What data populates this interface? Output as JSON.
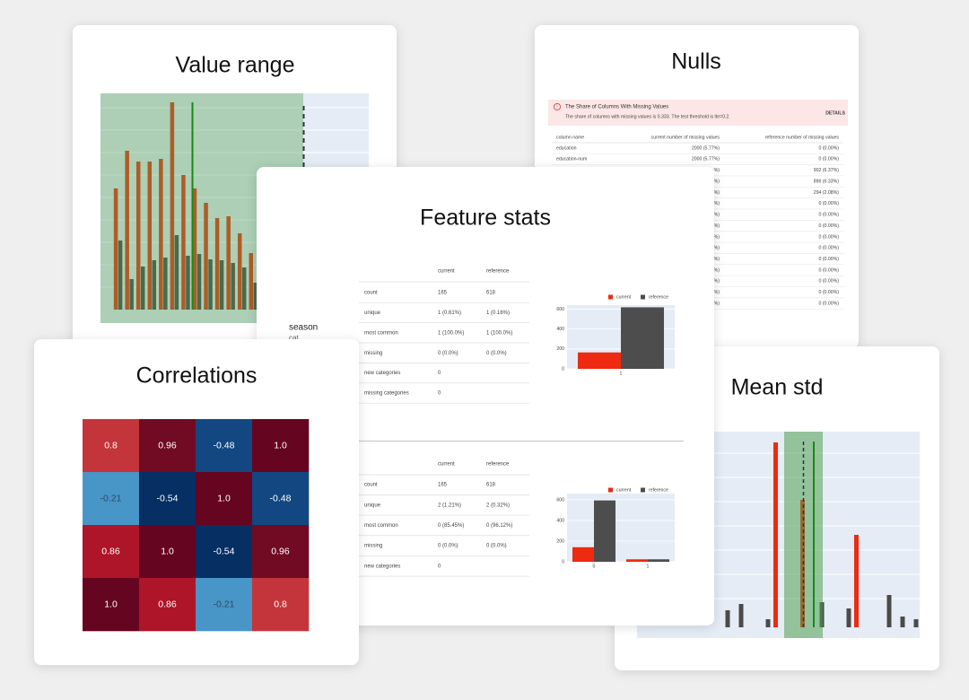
{
  "value_range": {
    "title": "Value range",
    "type": "bar",
    "ylim": [
      0,
      240
    ],
    "series": [
      {
        "color": "#e8330f",
        "values": [
          null,
          135,
          177,
          165,
          165,
          168,
          231,
          150,
          135,
          119,
          102,
          104,
          85,
          63,
          null,
          null,
          null,
          null
        ]
      },
      {
        "color": "#4a4a4a",
        "values": [
          null,
          77,
          34,
          48,
          55,
          58,
          83,
          60,
          62,
          56,
          55,
          52,
          47,
          30,
          null,
          null,
          null,
          null
        ]
      }
    ]
  },
  "nulls": {
    "title": "Nulls",
    "alert": {
      "icon": "!",
      "title": "The Share of Columns With Missing Values",
      "text": "The share of columns with missing values is 0.333. The test threshold is lte=0.2.",
      "action": "DETAILS"
    },
    "table": {
      "columns": [
        "column name",
        "current number of missing values",
        "reference number of missing values"
      ],
      "rows": [
        [
          "education",
          "2000 (5.77%)",
          "0 (0.00%)"
        ],
        [
          "education-num",
          "2000 (5.77%)",
          "0 (0.00%)"
        ],
        [
          null,
          "%)",
          "902 (6.37%)"
        ],
        [
          null,
          "%)",
          "896 (6.33%)"
        ],
        [
          null,
          "%)",
          "294 (2.08%)"
        ],
        [
          null,
          "%)",
          "0 (0.00%)"
        ],
        [
          null,
          "%)",
          "0 (0.00%)"
        ],
        [
          null,
          "%)",
          "0 (0.00%)"
        ],
        [
          null,
          "%)",
          "0 (0.00%)"
        ],
        [
          null,
          "%)",
          "0 (0.00%)"
        ],
        [
          null,
          "%)",
          "0 (0.00%)"
        ],
        [
          null,
          "%)",
          "0 (0.00%)"
        ],
        [
          null,
          "%)",
          "0 (0.00%)"
        ],
        [
          null,
          "%)",
          "0 (0.00%)"
        ],
        [
          null,
          "%)",
          "0 (0.00%)"
        ]
      ]
    }
  },
  "feature_stats": {
    "title": "Feature stats",
    "feature": "season",
    "feature_type": "cat",
    "tables": [
      {
        "columns": [
          "current",
          "reference"
        ],
        "rows": [
          [
            "count",
            "165",
            "618"
          ],
          [
            "unique",
            "1 (0.61%)",
            "1 (0.16%)"
          ],
          [
            "most common",
            "1 (100.0%)",
            "1 (100.0%)"
          ],
          [
            "missing",
            "0 (0.0%)",
            "0 (0.0%)"
          ],
          [
            "new categories",
            "0"
          ],
          [
            "missing categories",
            "0"
          ]
        ]
      },
      {
        "columns": [
          "current",
          "reference"
        ],
        "rows": [
          [
            "count",
            "165",
            "618"
          ],
          [
            "unique",
            "2 (1.21%)",
            "2 (0.32%)"
          ],
          [
            "most common",
            "0 (85.45%)",
            "0 (96.12%)"
          ],
          [
            "missing",
            "0 (0.0%)",
            "0 (0.0%)"
          ],
          [
            "new categories",
            "0"
          ]
        ]
      }
    ],
    "charts": [
      {
        "type": "bar",
        "categories": [
          "1"
        ],
        "series": [
          {
            "name": "current",
            "color": "#ee2a10",
            "values": [
              165
            ]
          },
          {
            "name": "reference",
            "color": "#4d4d4d",
            "values": [
              618
            ]
          }
        ],
        "ylim": [
          0,
          640
        ],
        "yticks": [
          0,
          200,
          400,
          600
        ]
      },
      {
        "type": "bar",
        "categories": [
          "0",
          "1"
        ],
        "series": [
          {
            "name": "current",
            "color": "#ee2a10",
            "values": [
              141,
              24
            ]
          },
          {
            "name": "reference",
            "color": "#4d4d4d",
            "values": [
              594,
              24
            ]
          }
        ],
        "ylim": [
          0,
          660
        ],
        "yticks": [
          0,
          200,
          400,
          600
        ]
      }
    ]
  },
  "correlations": {
    "title": "Correlations",
    "type": "heatmap",
    "values": [
      [
        0.8,
        0.96,
        -0.48,
        1
      ],
      [
        -0.21,
        -0.54,
        1,
        -0.48
      ],
      [
        0.86,
        1,
        -0.54,
        0.96
      ],
      [
        1,
        0.86,
        -0.21,
        0.8
      ]
    ],
    "value_labels": [
      [
        "0.8",
        "0.96",
        "-0.48",
        "1.0"
      ],
      [
        "-0.21",
        "-0.54",
        "1.0",
        "-0.48"
      ],
      [
        "0.86",
        "1.0",
        "-0.54",
        "0.96"
      ],
      [
        "1.0",
        "0.86",
        "-0.21",
        "0.8"
      ]
    ],
    "colors": [
      [
        "#c3353a",
        "#700b23",
        "#124781",
        "#66051f"
      ],
      [
        "#4895c8",
        "#062f63",
        "#66051f",
        "#124781"
      ],
      [
        "#ae1529",
        "#66051f",
        "#062f63",
        "#700b23"
      ],
      [
        "#66051f",
        "#ae1529",
        "#4895c8",
        "#c3353a"
      ]
    ]
  },
  "mean_std": {
    "title": "Mean std",
    "type": "bar",
    "ylim": [
      0,
      220
    ],
    "series": [
      {
        "color": "#ee2a10",
        "values": [
          null,
          null,
          null,
          null,
          null,
          null,
          null,
          null,
          null,
          null,
          206,
          null,
          142,
          null,
          null,
          null,
          103,
          null,
          null,
          null,
          null
        ]
      },
      {
        "color": "#4a4a4a",
        "values": [
          null,
          null,
          null,
          null,
          null,
          null,
          19,
          26,
          null,
          9,
          null,
          null,
          null,
          28,
          null,
          21,
          null,
          null,
          36,
          12,
          9
        ]
      }
    ]
  }
}
